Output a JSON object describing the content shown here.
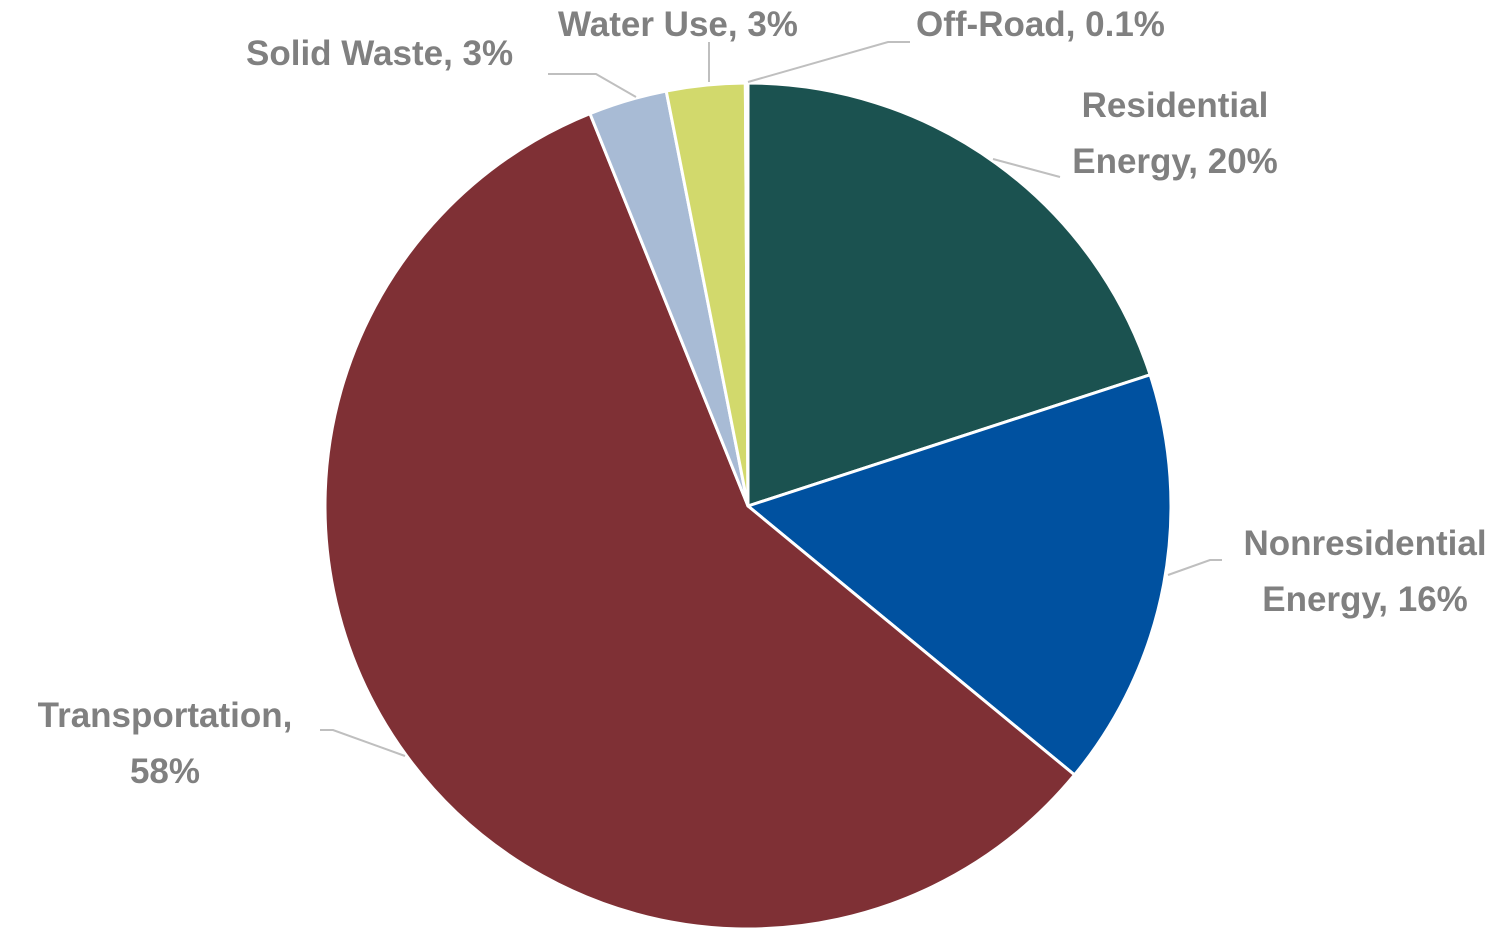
{
  "chart_data": {
    "type": "pie",
    "title": "",
    "slices": [
      {
        "name": "Residential Energy",
        "value": 20,
        "label_lines": [
          "Residential",
          "Energy, 20%"
        ],
        "color": "#1b5250"
      },
      {
        "name": "Nonresidential Energy",
        "value": 16,
        "label_lines": [
          "Nonresidential",
          "Energy, 16%"
        ],
        "color": "#0051a0"
      },
      {
        "name": "Transportation",
        "value": 58,
        "label_lines": [
          "Transportation,",
          "58%"
        ],
        "color": "#7f3035"
      },
      {
        "name": "Solid Waste",
        "value": 3,
        "label_lines": [
          "Solid Waste, 3%"
        ],
        "color": "#a8bbd5"
      },
      {
        "name": "Water Use",
        "value": 3,
        "label_lines": [
          "Water Use, 3%"
        ],
        "color": "#d2d96c"
      },
      {
        "name": "Off-Road",
        "value": 0.1,
        "label_lines": [
          "Off-Road, 0.1%"
        ],
        "color": "#8c8c8c"
      }
    ],
    "start_angle": "12 o'clock",
    "direction": "clockwise",
    "legend": "none",
    "data_labels": "outside with leader lines",
    "label_color": "#808080",
    "leader_color": "#bfbfbf",
    "slice_border_color": "#ffffff"
  }
}
